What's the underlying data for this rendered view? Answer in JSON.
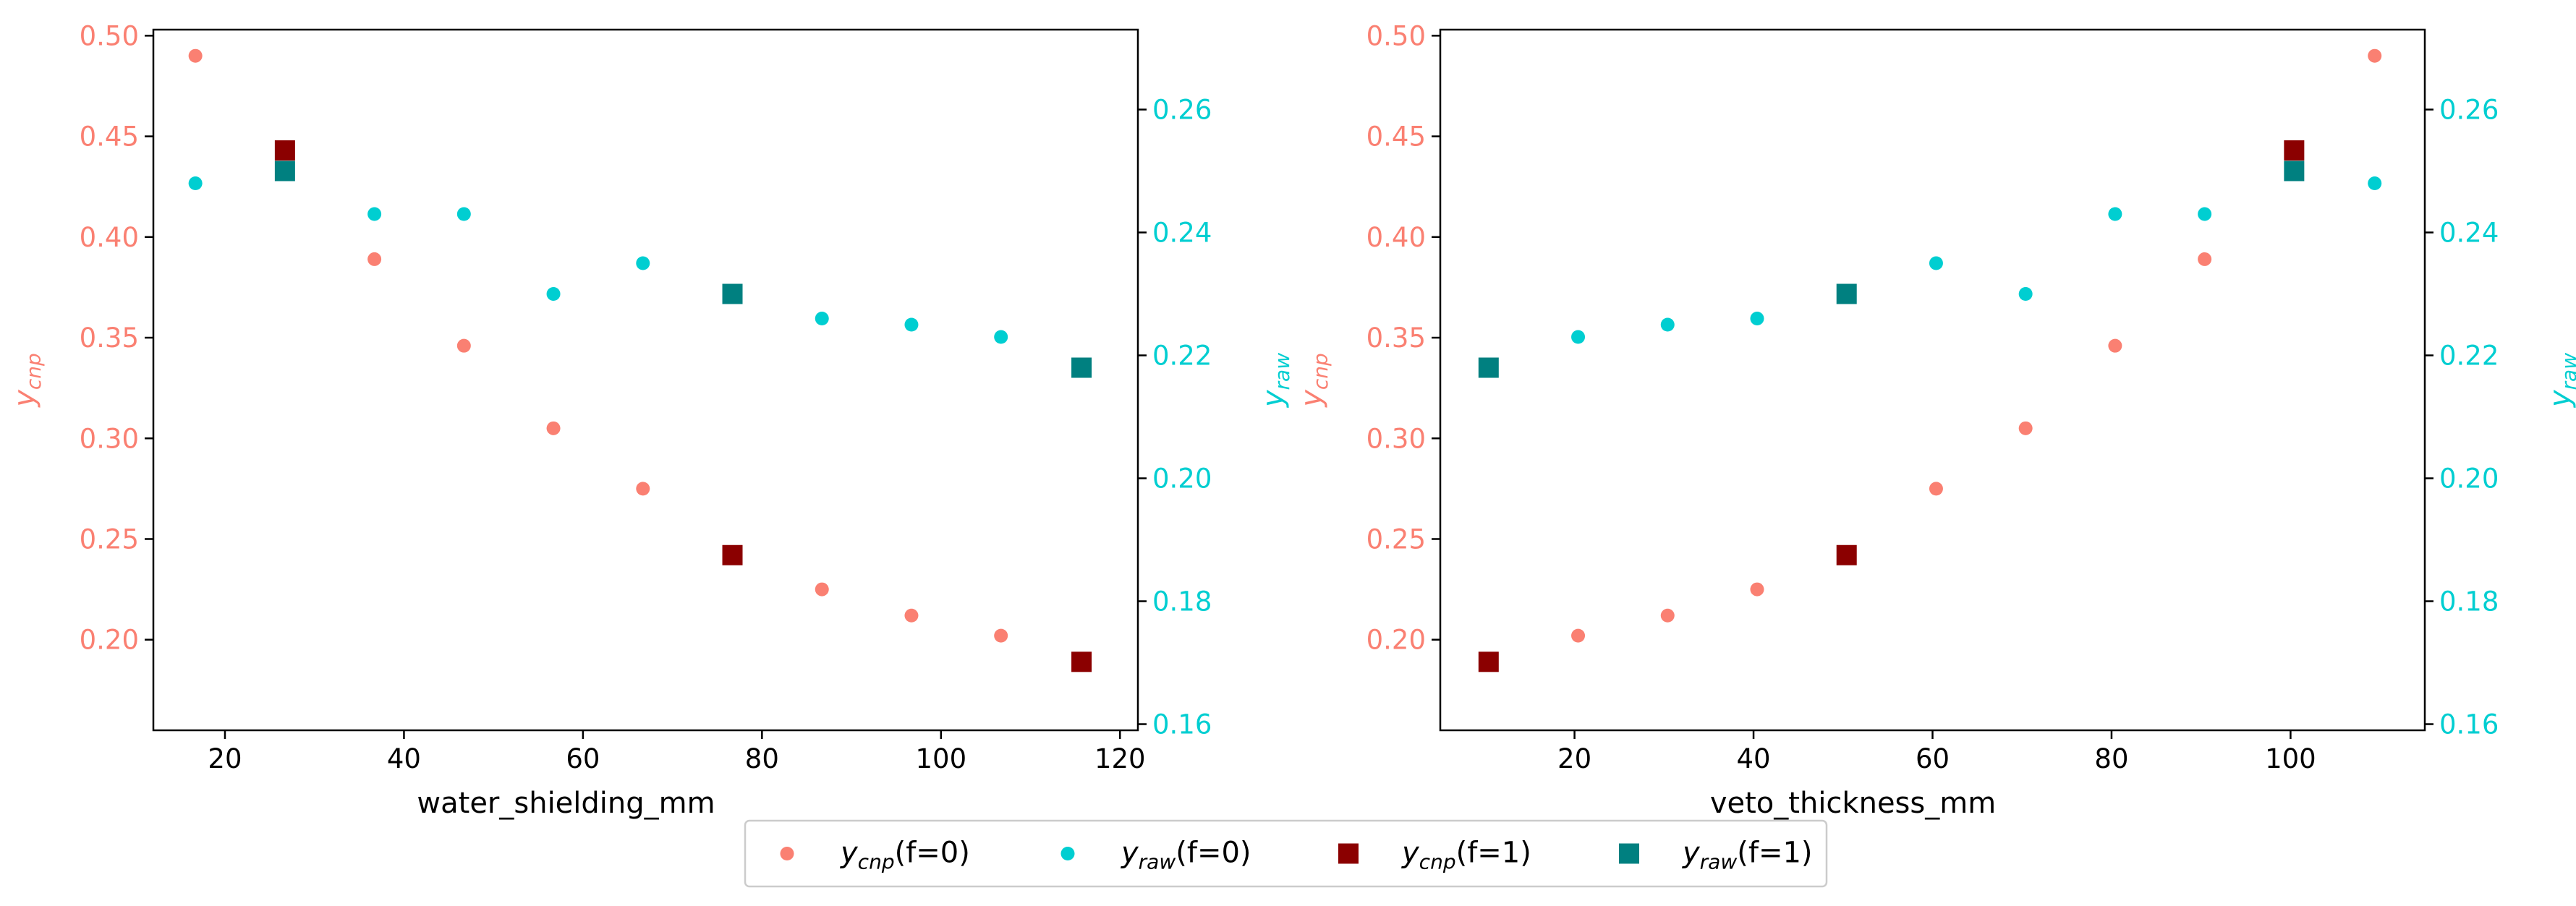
{
  "colors": {
    "cnp_f0": "#fa8072",
    "raw_f0": "#00ced1",
    "cnp_f1": "#8b0000",
    "raw_f1": "#008080",
    "left_axis": "#fa8072",
    "right_axis": "#00ced1",
    "frame": "#000000",
    "text": "#000000"
  },
  "legend": {
    "placement": "bottom-center",
    "entries": [
      {
        "series": "cnp_f0",
        "marker": "circle",
        "var": "y",
        "sub": "cnp",
        "tail": "(f=0)"
      },
      {
        "series": "raw_f0",
        "marker": "circle",
        "var": "y",
        "sub": "raw",
        "tail": "(f=0)"
      },
      {
        "series": "cnp_f1",
        "marker": "square",
        "var": "y",
        "sub": "cnp",
        "tail": "(f=1)"
      },
      {
        "series": "raw_f1",
        "marker": "square",
        "var": "y",
        "sub": "raw",
        "tail": "(f=1)"
      }
    ]
  },
  "chart_data": [
    {
      "type": "scatter",
      "xlabel": "water_shielding_mm",
      "ylabel_left": {
        "var": "y",
        "sub": "cnp"
      },
      "ylabel_right": {
        "var": "y",
        "sub": "raw"
      },
      "xlim": [
        12,
        122
      ],
      "ylim_left": [
        0.155,
        0.503
      ],
      "ylim_right": [
        0.159,
        0.273
      ],
      "xticks": [
        20,
        40,
        60,
        80,
        100,
        120
      ],
      "yticks_left": [
        0.2,
        0.25,
        0.3,
        0.35,
        0.4,
        0.45,
        0.5
      ],
      "yticks_right": [
        0.16,
        0.18,
        0.2,
        0.22,
        0.24,
        0.26
      ],
      "grid": false,
      "series": {
        "cnp_f0": {
          "x": [
            16.7,
            36.7,
            46.7,
            56.7,
            66.7,
            86.7,
            96.7,
            106.7
          ],
          "y": [
            0.49,
            0.389,
            0.346,
            0.305,
            0.275,
            0.225,
            0.212,
            0.202
          ]
        },
        "raw_f0": {
          "x": [
            16.7,
            36.7,
            46.7,
            56.7,
            66.7,
            86.7,
            96.7,
            106.7
          ],
          "y": [
            0.248,
            0.243,
            0.243,
            0.23,
            0.235,
            0.226,
            0.225,
            0.223
          ]
        },
        "cnp_f1": {
          "x": [
            26.7,
            76.7,
            115.7
          ],
          "y": [
            0.443,
            0.242,
            0.189
          ]
        },
        "raw_f1": {
          "x": [
            26.7,
            76.7,
            115.7
          ],
          "y": [
            0.25,
            0.23,
            0.218
          ]
        }
      }
    },
    {
      "type": "scatter",
      "xlabel": "veto_thickness_mm",
      "ylabel_left": {
        "var": "y",
        "sub": "cnp"
      },
      "ylabel_right": {
        "var": "y",
        "sub": "raw"
      },
      "xlim": [
        5,
        115
      ],
      "ylim_left": [
        0.155,
        0.503
      ],
      "ylim_right": [
        0.159,
        0.273
      ],
      "xticks": [
        20,
        40,
        60,
        80,
        100
      ],
      "yticks_left": [
        0.2,
        0.25,
        0.3,
        0.35,
        0.4,
        0.45,
        0.5
      ],
      "yticks_right": [
        0.16,
        0.18,
        0.2,
        0.22,
        0.24,
        0.26
      ],
      "grid": false,
      "series": {
        "cnp_f0": {
          "x": [
            20.4,
            30.4,
            40.4,
            60.4,
            70.4,
            80.4,
            90.4,
            109.4
          ],
          "y": [
            0.202,
            0.212,
            0.225,
            0.275,
            0.305,
            0.346,
            0.389,
            0.49
          ]
        },
        "raw_f0": {
          "x": [
            20.4,
            30.4,
            40.4,
            60.4,
            70.4,
            80.4,
            90.4,
            109.4
          ],
          "y": [
            0.223,
            0.225,
            0.226,
            0.235,
            0.23,
            0.243,
            0.243,
            0.248
          ]
        },
        "cnp_f1": {
          "x": [
            10.4,
            50.4,
            100.4
          ],
          "y": [
            0.189,
            0.242,
            0.443
          ]
        },
        "raw_f1": {
          "x": [
            10.4,
            50.4,
            100.4
          ],
          "y": [
            0.218,
            0.23,
            0.25
          ]
        }
      }
    }
  ]
}
